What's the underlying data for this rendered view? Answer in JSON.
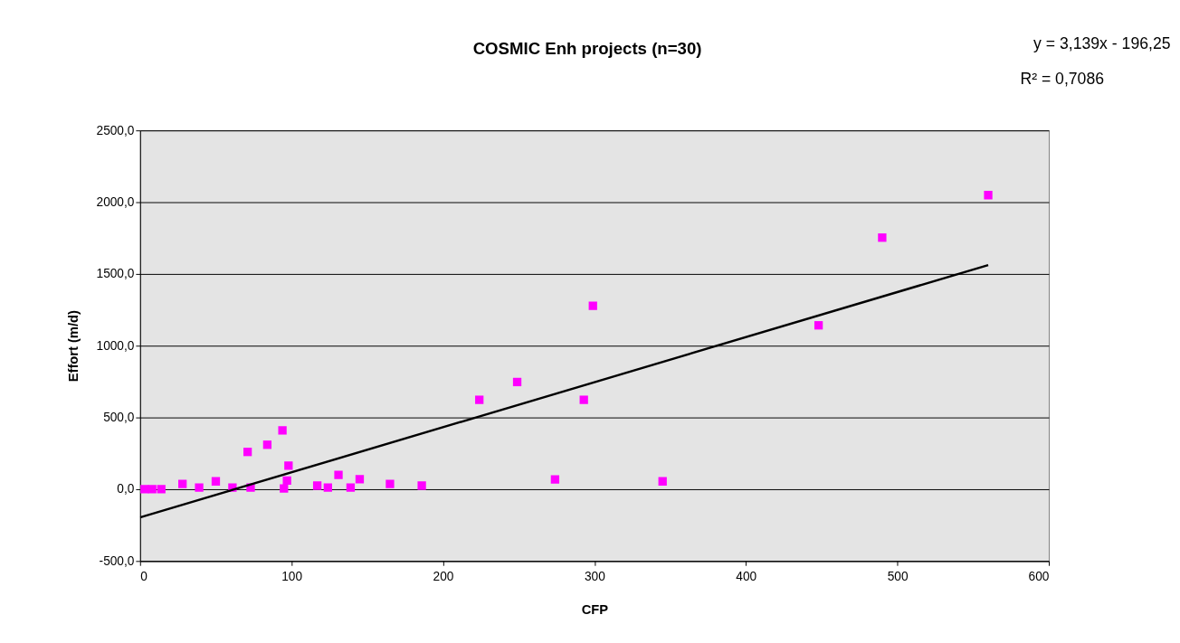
{
  "chart_data": {
    "type": "scatter",
    "title": "COSMIC Enh projects (n=30)",
    "xlabel": "CFP",
    "ylabel": "Effort (m/d)",
    "annotations": [
      "y = 3,139x - 196,25",
      "R² = 0,7086"
    ],
    "xlim": [
      0,
      600
    ],
    "xticks": [
      0,
      100,
      200,
      300,
      400,
      500,
      600
    ],
    "ylim": [
      -500,
      2500
    ],
    "yticks": [
      {
        "value": -500,
        "label": "-500,0"
      },
      {
        "value": 0,
        "label": "0,0"
      },
      {
        "value": 500,
        "label": "500,0"
      },
      {
        "value": 1000,
        "label": "1000,0"
      },
      {
        "value": 1500,
        "label": "1500,0"
      },
      {
        "value": 2000,
        "label": "2000,0"
      },
      {
        "value": 2500,
        "label": "2500,0"
      }
    ],
    "grid": "y",
    "legend": false,
    "marker": "square",
    "series": [
      {
        "color": "#ff00ff",
        "x": [
          3,
          8,
          14,
          28,
          39,
          50,
          61,
          71,
          73,
          84,
          94,
          95,
          97,
          98,
          117,
          124,
          131,
          139,
          145,
          165,
          186,
          224,
          249,
          274,
          293,
          299,
          345,
          448,
          490,
          560
        ],
        "values": [
          0,
          0,
          0,
          37,
          12,
          55,
          12,
          260,
          12,
          310,
          410,
          5,
          60,
          165,
          25,
          12,
          100,
          12,
          70,
          37,
          25,
          623,
          747,
          68,
          623,
          1278,
          55,
          1142,
          1753,
          2049
        ]
      },
      {
        "type": "line",
        "color": "#000000",
        "x": [
          0,
          560
        ],
        "values": [
          -196,
          1562
        ],
        "marker": "none"
      }
    ]
  }
}
